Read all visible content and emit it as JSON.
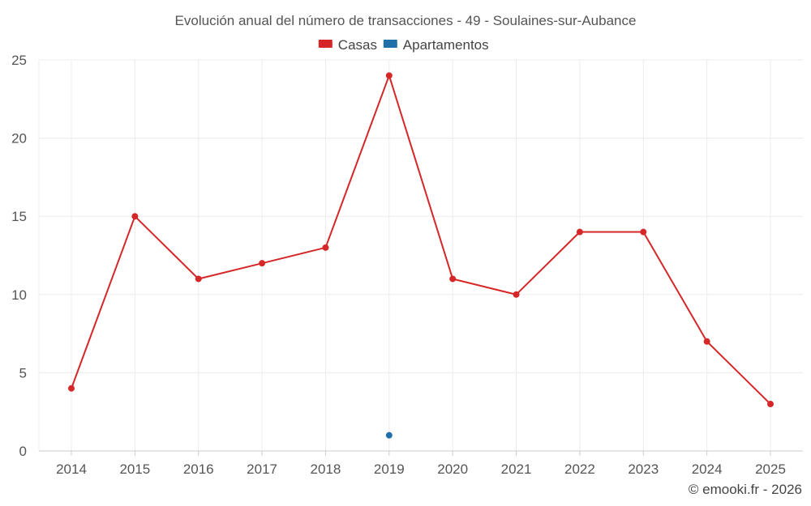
{
  "chart_data": {
    "type": "line",
    "title": "Evolución anual del número de transacciones - 49 - Soulaines-sur-Aubance",
    "categories": [
      "2014",
      "2015",
      "2016",
      "2017",
      "2018",
      "2019",
      "2020",
      "2021",
      "2022",
      "2023",
      "2024",
      "2025"
    ],
    "series": [
      {
        "name": "Casas",
        "color": "#d62728",
        "values": [
          4,
          15,
          11,
          12,
          13,
          24,
          11,
          10,
          14,
          14,
          7,
          3
        ]
      },
      {
        "name": "Apartamentos",
        "color": "#1f6fa8",
        "values": [
          null,
          null,
          null,
          null,
          null,
          1,
          null,
          null,
          null,
          null,
          null,
          null
        ]
      }
    ],
    "ylim": [
      0,
      25
    ],
    "yticks": [
      "0",
      "5",
      "10",
      "15",
      "20",
      "25"
    ],
    "grid": true,
    "legend": "top-center",
    "xlabel": "",
    "ylabel": ""
  },
  "footer": {
    "credit": "© emooki.fr - 2026"
  }
}
